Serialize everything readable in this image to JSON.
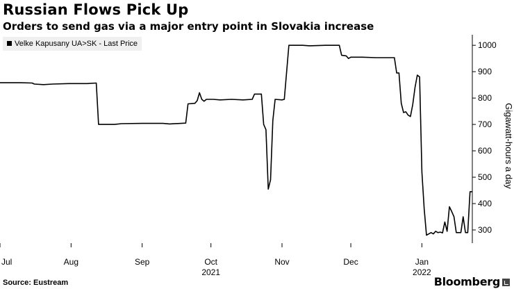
{
  "chart_data": {
    "type": "line",
    "title": "Russian Flows Pick Up",
    "subtitle": "Orders to send gas via a major entry point in Slovakia increase",
    "ylabel": "Gigawatt-hours a day",
    "ylim": [
      250,
      1040
    ],
    "yticks": [
      300,
      400,
      500,
      600,
      700,
      800,
      900,
      1000
    ],
    "grid": false,
    "legend_position": "top-left",
    "xlim": [
      "2021-07-01",
      "2022-01-23"
    ],
    "xticks": [
      {
        "date": "2021-07-01",
        "label": "Jul",
        "year_label": ""
      },
      {
        "date": "2021-08-01",
        "label": "Aug",
        "year_label": ""
      },
      {
        "date": "2021-09-01",
        "label": "Sep",
        "year_label": ""
      },
      {
        "date": "2021-10-01",
        "label": "Oct",
        "year_label": "2021"
      },
      {
        "date": "2021-11-01",
        "label": "Nov",
        "year_label": ""
      },
      {
        "date": "2021-12-01",
        "label": "Dec",
        "year_label": ""
      },
      {
        "date": "2022-01-01",
        "label": "Jan",
        "year_label": "2022"
      }
    ],
    "series": [
      {
        "name": "Velke Kapusany UA>SK - Last Price",
        "color": "#000000",
        "points": [
          [
            "2021-07-01",
            858
          ],
          [
            "2021-07-10",
            858
          ],
          [
            "2021-07-15",
            857
          ],
          [
            "2021-07-16",
            853
          ],
          [
            "2021-07-20",
            851
          ],
          [
            "2021-07-24",
            853
          ],
          [
            "2021-07-31",
            855
          ],
          [
            "2021-08-08",
            855
          ],
          [
            "2021-08-12",
            857
          ],
          [
            "2021-08-13",
            700
          ],
          [
            "2021-08-20",
            700
          ],
          [
            "2021-08-23",
            703
          ],
          [
            "2021-09-01",
            704
          ],
          [
            "2021-09-10",
            704
          ],
          [
            "2021-09-13",
            702
          ],
          [
            "2021-09-20",
            705
          ],
          [
            "2021-09-21",
            778
          ],
          [
            "2021-09-24",
            780
          ],
          [
            "2021-09-25",
            790
          ],
          [
            "2021-09-26",
            820
          ],
          [
            "2021-09-27",
            795
          ],
          [
            "2021-09-28",
            788
          ],
          [
            "2021-09-29",
            795
          ],
          [
            "2021-10-02",
            795
          ],
          [
            "2021-10-05",
            793
          ],
          [
            "2021-10-10",
            795
          ],
          [
            "2021-10-15",
            793
          ],
          [
            "2021-10-19",
            795
          ],
          [
            "2021-10-20",
            815
          ],
          [
            "2021-10-23",
            815
          ],
          [
            "2021-10-24",
            700
          ],
          [
            "2021-10-25",
            680
          ],
          [
            "2021-10-26",
            455
          ],
          [
            "2021-10-27",
            490
          ],
          [
            "2021-10-28",
            715
          ],
          [
            "2021-10-29",
            795
          ],
          [
            "2021-11-01",
            793
          ],
          [
            "2021-11-02",
            795
          ],
          [
            "2021-11-04",
            1000
          ],
          [
            "2021-11-10",
            1000
          ],
          [
            "2021-11-13",
            998
          ],
          [
            "2021-11-20",
            1000
          ],
          [
            "2021-11-26",
            1000
          ],
          [
            "2021-11-27",
            962
          ],
          [
            "2021-11-29",
            960
          ],
          [
            "2021-11-30",
            950
          ],
          [
            "2021-12-01",
            955
          ],
          [
            "2021-12-06",
            955
          ],
          [
            "2021-12-12",
            953
          ],
          [
            "2021-12-20",
            953
          ],
          [
            "2021-12-21",
            895
          ],
          [
            "2021-12-22",
            895
          ],
          [
            "2021-12-23",
            780
          ],
          [
            "2021-12-24",
            745
          ],
          [
            "2021-12-25",
            748
          ],
          [
            "2021-12-26",
            735
          ],
          [
            "2021-12-27",
            730
          ],
          [
            "2021-12-28",
            775
          ],
          [
            "2021-12-29",
            840
          ],
          [
            "2021-12-30",
            887
          ],
          [
            "2021-12-31",
            880
          ],
          [
            "2022-01-01",
            520
          ],
          [
            "2022-01-02",
            380
          ],
          [
            "2022-01-03",
            280
          ],
          [
            "2022-01-04",
            285
          ],
          [
            "2022-01-05",
            290
          ],
          [
            "2022-01-06",
            285
          ],
          [
            "2022-01-07",
            295
          ],
          [
            "2022-01-08",
            290
          ],
          [
            "2022-01-09",
            292
          ],
          [
            "2022-01-10",
            289
          ],
          [
            "2022-01-11",
            330
          ],
          [
            "2022-01-12",
            295
          ],
          [
            "2022-01-13",
            388
          ],
          [
            "2022-01-14",
            370
          ],
          [
            "2022-01-15",
            350
          ],
          [
            "2022-01-16",
            290
          ],
          [
            "2022-01-18",
            290
          ],
          [
            "2022-01-19",
            350
          ],
          [
            "2022-01-20",
            290
          ],
          [
            "2022-01-21",
            290
          ],
          [
            "2022-01-22",
            445
          ],
          [
            "2022-01-23",
            445
          ]
        ]
      }
    ]
  },
  "source": "Source: Eustream",
  "brand": "Bloomberg"
}
